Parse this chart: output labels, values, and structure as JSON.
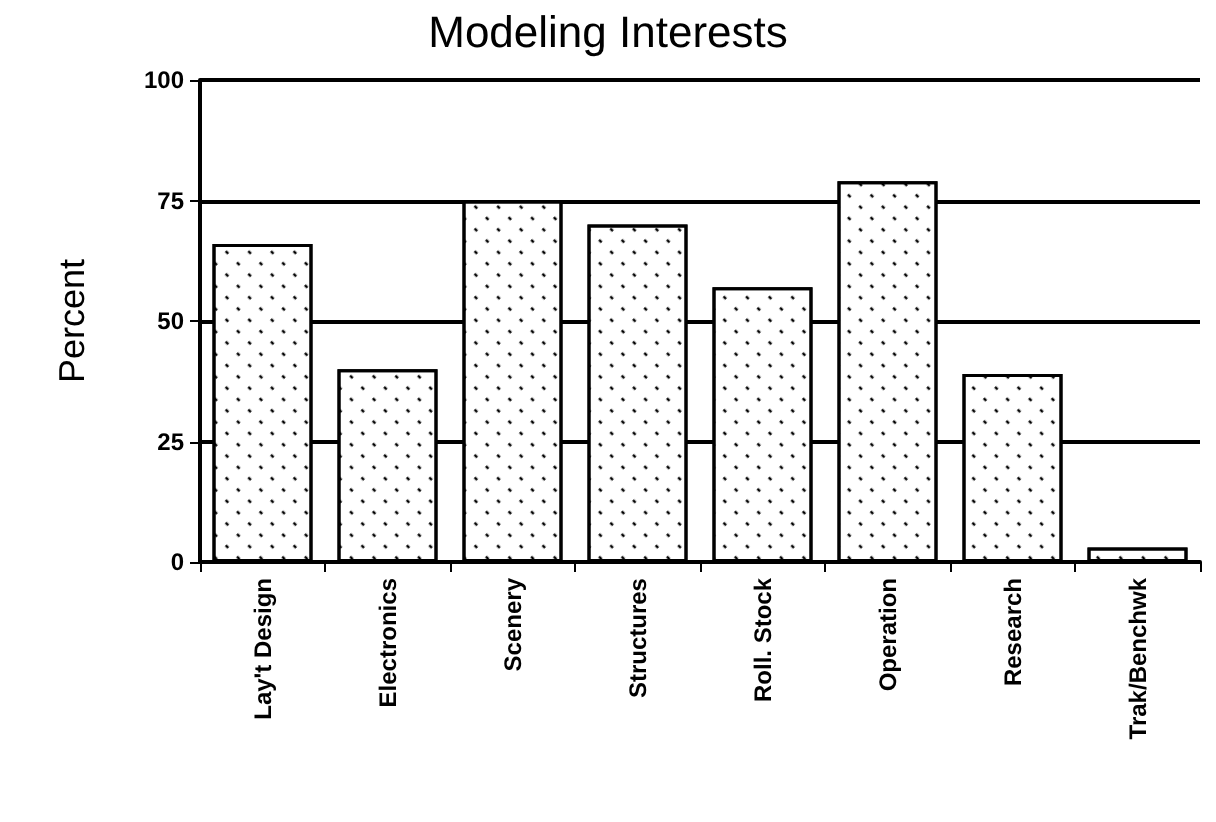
{
  "chart_data": {
    "type": "bar",
    "title": "Modeling Interests",
    "ylabel": "Percent",
    "categories": [
      "Lay't Design",
      "Electronics",
      "Scenery",
      "Structures",
      "Roll. Stock",
      "Operation",
      "Research",
      "Trak/Benchwk"
    ],
    "values": [
      66,
      40,
      75,
      70,
      57,
      79,
      39,
      3
    ],
    "color": "#ffffff",
    "ylim": [
      0,
      100
    ],
    "yticks": [
      0,
      25,
      50,
      75,
      100
    ],
    "grid": "y"
  }
}
